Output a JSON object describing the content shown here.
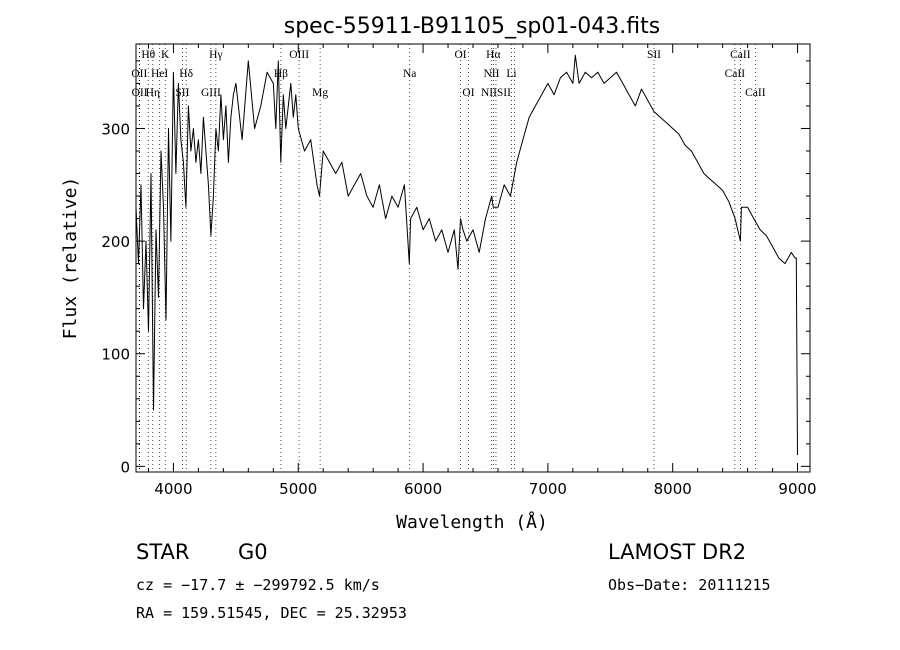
{
  "chart_data": {
    "type": "line",
    "title": "spec-55911-B91105_sp01-043.fits",
    "xlabel": "Wavelength (Å)",
    "ylabel": "Flux (relative)",
    "xlim": [
      3700,
      9100
    ],
    "ylim": [
      -5,
      375
    ],
    "xticks": [
      4000,
      5000,
      6000,
      7000,
      8000,
      9000
    ],
    "yticks": [
      0,
      100,
      200,
      300
    ],
    "grid": false,
    "series": [
      {
        "color": "#000000",
        "x": [
          3700,
          3720,
          3740,
          3760,
          3780,
          3800,
          3820,
          3840,
          3860,
          3880,
          3900,
          3920,
          3940,
          3960,
          3980,
          4000,
          4020,
          4040,
          4060,
          4080,
          4100,
          4120,
          4140,
          4160,
          4180,
          4200,
          4220,
          4240,
          4260,
          4280,
          4300,
          4320,
          4340,
          4360,
          4380,
          4400,
          4420,
          4440,
          4460,
          4480,
          4500,
          4550,
          4600,
          4650,
          4700,
          4750,
          4800,
          4820,
          4840,
          4860,
          4880,
          4900,
          4920,
          4940,
          4960,
          4980,
          5000,
          5050,
          5100,
          5150,
          5170,
          5200,
          5250,
          5300,
          5350,
          5400,
          5450,
          5500,
          5550,
          5600,
          5650,
          5700,
          5750,
          5800,
          5850,
          5890,
          5900,
          5950,
          6000,
          6050,
          6100,
          6150,
          6200,
          6250,
          6280,
          6300,
          6320,
          6350,
          6400,
          6450,
          6500,
          6550,
          6563,
          6600,
          6650,
          6700,
          6750,
          6800,
          6850,
          6900,
          6950,
          7000,
          7050,
          7100,
          7150,
          7200,
          7220,
          7250,
          7300,
          7350,
          7400,
          7450,
          7500,
          7550,
          7600,
          7650,
          7700,
          7750,
          7800,
          7850,
          7900,
          7950,
          8000,
          8050,
          8100,
          8150,
          8200,
          8250,
          8300,
          8350,
          8400,
          8450,
          8500,
          8542,
          8550,
          8600,
          8650,
          8700,
          8750,
          8800,
          8850,
          8900,
          8950,
          8980,
          8990,
          9000
        ],
        "y": [
          230,
          180,
          250,
          140,
          200,
          120,
          260,
          50,
          210,
          150,
          280,
          230,
          130,
          300,
          200,
          350,
          260,
          340,
          290,
          270,
          230,
          320,
          280,
          300,
          270,
          290,
          260,
          310,
          280,
          250,
          205,
          240,
          300,
          280,
          330,
          290,
          320,
          270,
          310,
          330,
          340,
          290,
          360,
          300,
          320,
          350,
          340,
          300,
          360,
          270,
          330,
          300,
          320,
          340,
          310,
          330,
          300,
          280,
          290,
          250,
          240,
          280,
          270,
          260,
          270,
          240,
          250,
          260,
          240,
          230,
          250,
          220,
          240,
          230,
          250,
          180,
          220,
          230,
          210,
          220,
          200,
          210,
          190,
          210,
          175,
          220,
          210,
          200,
          210,
          190,
          220,
          240,
          230,
          230,
          250,
          240,
          270,
          290,
          310,
          320,
          330,
          340,
          330,
          345,
          350,
          340,
          365,
          340,
          350,
          345,
          350,
          340,
          345,
          350,
          340,
          330,
          320,
          335,
          325,
          315,
          310,
          305,
          300,
          295,
          285,
          280,
          270,
          260,
          255,
          250,
          245,
          235,
          220,
          200,
          230,
          230,
          220,
          210,
          205,
          195,
          185,
          180,
          190,
          185,
          185,
          10
        ]
      }
    ],
    "lines": [
      {
        "label": "Hθ",
        "x": 3798,
        "row": 0
      },
      {
        "label": "OII",
        "x": 3727,
        "row": 1
      },
      {
        "label": "OII",
        "x": 3729,
        "row": 2
      },
      {
        "label": "K",
        "x": 3934,
        "row": 0
      },
      {
        "label": "HeI",
        "x": 3889,
        "row": 1
      },
      {
        "label": "Hη",
        "x": 3835,
        "row": 2
      },
      {
        "label": "Hδ",
        "x": 4102,
        "row": 1
      },
      {
        "label": "SII",
        "x": 4072,
        "row": 2
      },
      {
        "label": "Hγ",
        "x": 4340,
        "row": 0
      },
      {
        "label": "GIII",
        "x": 4300,
        "row": 2
      },
      {
        "label": "OIII",
        "x": 5007,
        "row": 0
      },
      {
        "label": "Hβ",
        "x": 4861,
        "row": 1
      },
      {
        "label": "Mg",
        "x": 5175,
        "row": 2
      },
      {
        "label": "Na",
        "x": 5893,
        "row": 1
      },
      {
        "label": "OI",
        "x": 6300,
        "row": 0
      },
      {
        "label": "OI",
        "x": 6364,
        "row": 2
      },
      {
        "label": "Hα",
        "x": 6563,
        "row": 0
      },
      {
        "label": "NII",
        "x": 6548,
        "row": 1
      },
      {
        "label": "Li",
        "x": 6708,
        "row": 1
      },
      {
        "label": "NIISII",
        "x": 6584,
        "row": 2
      },
      {
        "label": "SII",
        "x": 6731,
        "row": -1
      },
      {
        "label": "SII",
        "x": 7850,
        "row": 0
      },
      {
        "label": "CaII",
        "x": 8498,
        "row": 1
      },
      {
        "label": "CaII",
        "x": 8542,
        "row": 0
      },
      {
        "label": "CaII",
        "x": 8662,
        "row": 2
      }
    ]
  },
  "info": {
    "object_class": "STAR",
    "subclass": "G0",
    "survey": "LAMOST DR2",
    "redshift": "cz = −17.7 ± −299792.5 km/s",
    "obs_date": "Obs−Date: 20111215",
    "coords": "RA = 159.51545, DEC =  25.32953"
  }
}
